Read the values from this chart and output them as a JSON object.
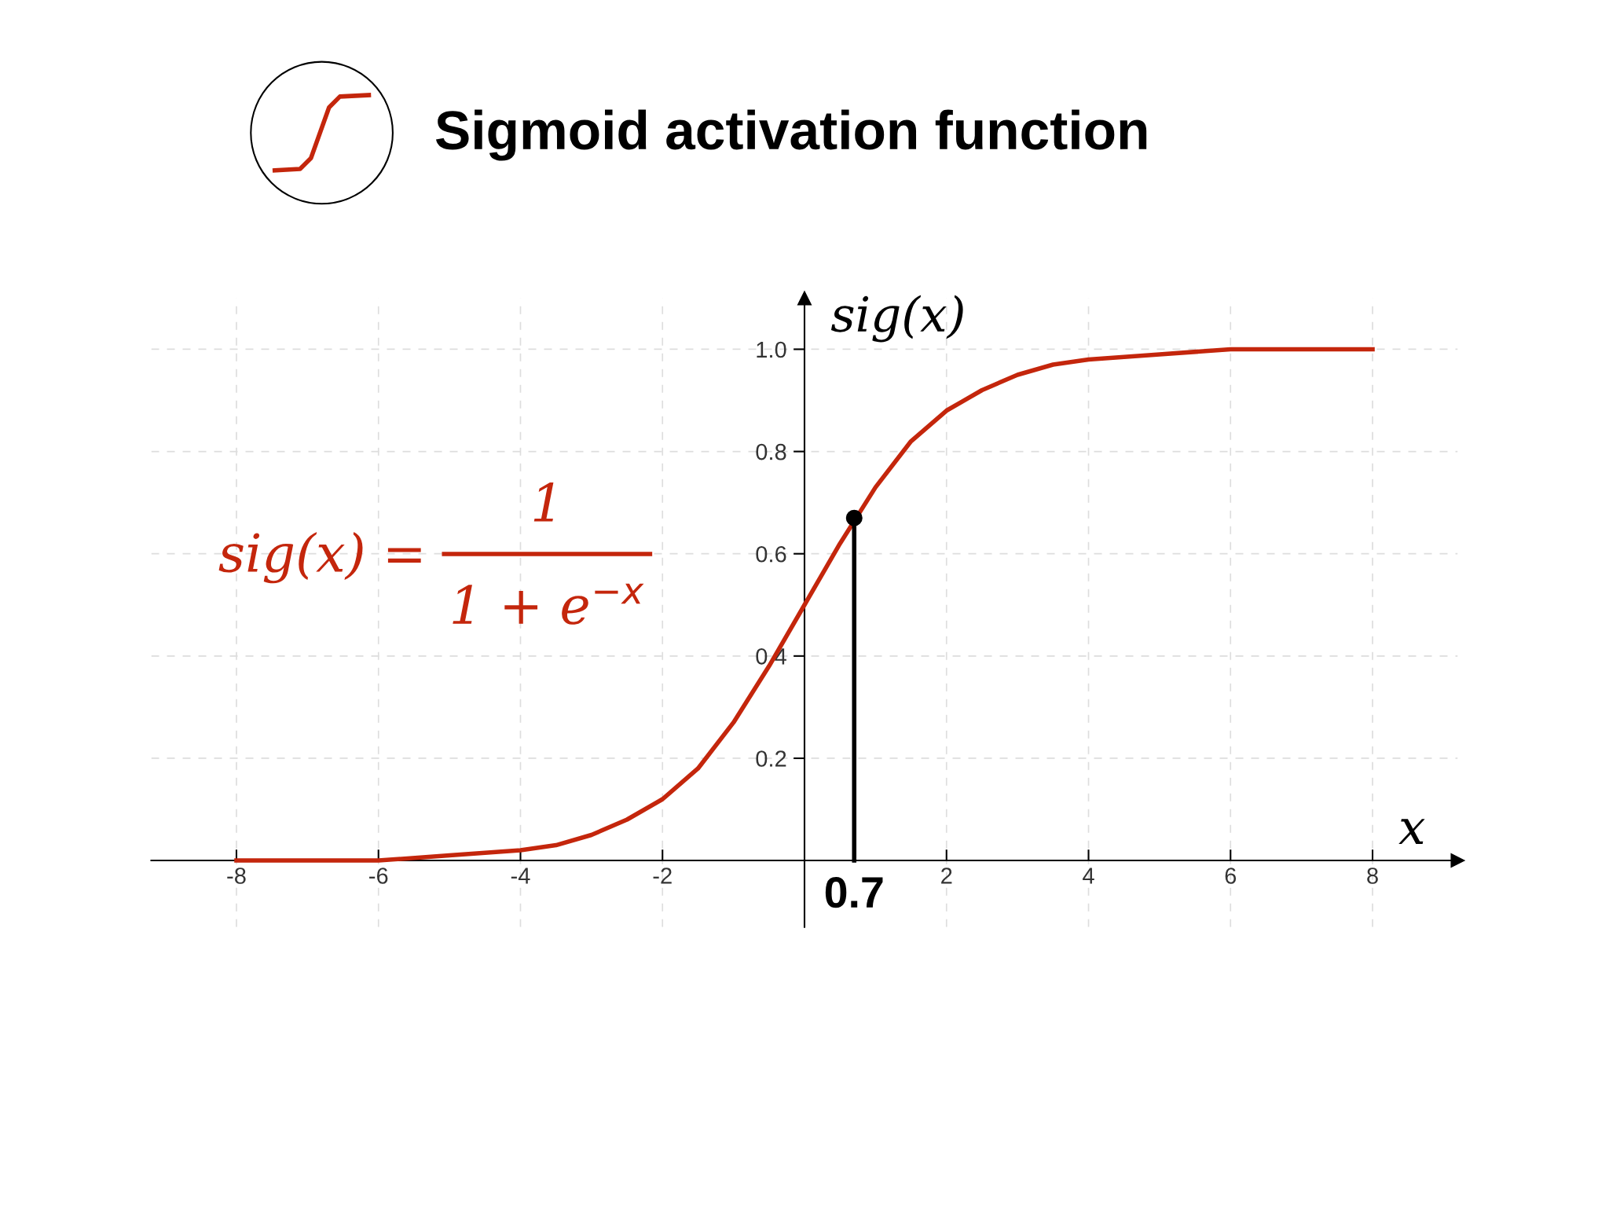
{
  "chart_data": {
    "type": "line",
    "title": "Sigmoid activation function",
    "xlabel": "x",
    "ylabel": "sig(x)",
    "xlim": [
      -9.2,
      9.2
    ],
    "ylim": [
      -0.13,
      1.1
    ],
    "xticks": [
      -8,
      -6,
      -4,
      -2,
      2,
      4,
      6,
      8
    ],
    "yticks": [
      0.2,
      0.4,
      0.6,
      0.8,
      {
        "value": 1.0,
        "label": "1.0"
      }
    ],
    "grid": true,
    "legend": false,
    "series": [
      {
        "type": "line",
        "color": "#c4260c",
        "marker": "none",
        "x": [
          -8,
          -7,
          -6,
          -5,
          -4,
          -3.5,
          -3,
          -2.5,
          -2,
          -1.5,
          -1,
          -0.5,
          0,
          0.5,
          1,
          1.5,
          2,
          2.5,
          3,
          3.5,
          4,
          5,
          6,
          7,
          8
        ],
        "values": [
          0,
          0,
          0,
          0.01,
          0.02,
          0.03,
          0.05,
          0.08,
          0.12,
          0.18,
          0.27,
          0.38,
          0.5,
          0.62,
          0.73,
          0.82,
          0.88,
          0.92,
          0.95,
          0.97,
          0.98,
          0.99,
          1,
          1,
          1
        ]
      },
      {
        "type": "line",
        "color": "#000000",
        "marker": "none",
        "x": [
          0.7,
          0.7
        ],
        "values": [
          0,
          0.67
        ]
      },
      {
        "type": "scatter",
        "color": "#000000",
        "marker": "circle",
        "x": [
          0.7
        ],
        "values": [
          0.67
        ]
      }
    ],
    "annotations": [
      {
        "text": "0.7",
        "x": 0.7,
        "y": 0
      },
      "sig(x) =",
      "1",
      "1 + e$^{−x}$"
    ]
  }
}
